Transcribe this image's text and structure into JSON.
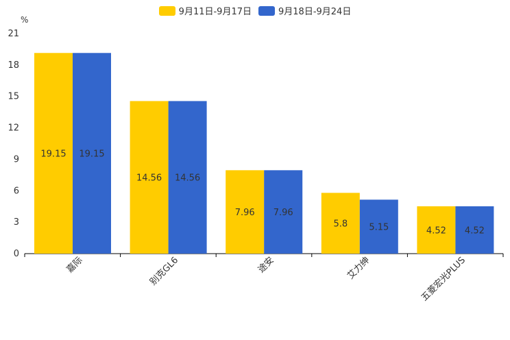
{
  "chart_data": {
    "type": "bar",
    "title": "",
    "xlabel": "",
    "ylabel": "%",
    "ylim": [
      0,
      21
    ],
    "yticks": [
      0,
      3,
      6,
      9,
      12,
      15,
      18,
      21
    ],
    "grid": false,
    "legend_position": "top-center",
    "categories": [
      "嘉际",
      "别克GL6",
      "途安",
      "艾力绅",
      "五菱宏光PLUS"
    ],
    "series": [
      {
        "name": "9月11日-9月17日",
        "color": "#FFCC00",
        "values": [
          19.15,
          14.56,
          7.96,
          5.8,
          4.52
        ],
        "labels": [
          "19.15",
          "14.56",
          "7.96",
          "5.8",
          "4.52"
        ]
      },
      {
        "name": "9月18日-9月24日",
        "color": "#3366CC",
        "values": [
          19.15,
          14.56,
          7.96,
          5.15,
          4.52
        ],
        "labels": [
          "19.15",
          "14.56",
          "7.96",
          "5.15",
          "4.52"
        ]
      }
    ]
  }
}
